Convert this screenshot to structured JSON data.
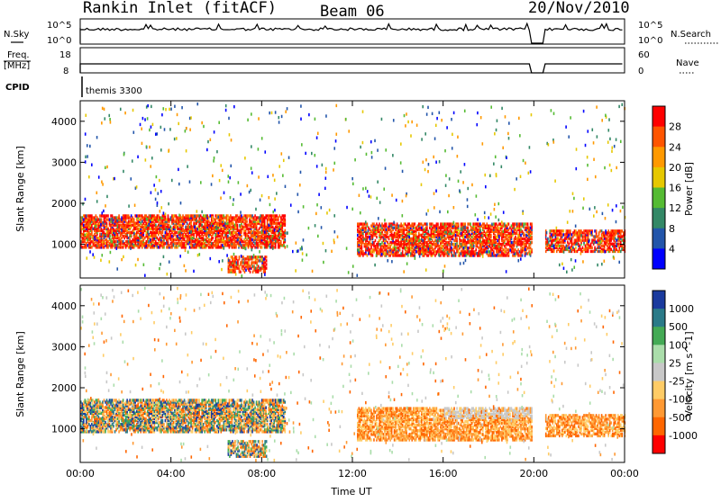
{
  "title": {
    "station": "Rankin Inlet (fitACF)",
    "beam": "Beam 06",
    "date": "20/Nov/2010"
  },
  "header": {
    "nsky_label": "N.Sky",
    "nsearch_label": "N.Search",
    "freq_label": "Freq.",
    "freq_unit": "[MHz]",
    "nave_label": "Nave",
    "cpid_label": "CPID",
    "cpid_value": "themis 3300",
    "nsky_ticks": [
      "10^5",
      "10^0"
    ],
    "nsearch_ticks": [
      "10^5",
      "10^0"
    ],
    "freq_ticks": [
      "18",
      "8"
    ],
    "nave_ticks": [
      "60",
      "0"
    ]
  },
  "chart_data": [
    {
      "type": "heatmap",
      "name": "power-panel",
      "ylabel": "Slant Range [km]",
      "xlabel": "",
      "xlim": [
        "00:00",
        "24:00"
      ],
      "ylim": [
        180,
        4500
      ],
      "y_ticks": [
        1000,
        2000,
        3000,
        4000
      ],
      "colorbar": {
        "label": "Power [dB]",
        "ticks": [
          "28",
          "24",
          "20",
          "16",
          "12",
          "8",
          "4"
        ],
        "colors": [
          "#ff0000",
          "#ff5500",
          "#ff9900",
          "#e6c800",
          "#55bb33",
          "#338866",
          "#2255aa",
          "#0000ff"
        ]
      },
      "features": [
        {
          "t_start": 0.0,
          "t_end": 9.0,
          "range_min": 900,
          "range_max": 1700,
          "level": "high"
        },
        {
          "t_start": 12.2,
          "t_end": 20.0,
          "range_min": 700,
          "range_max": 1500,
          "level": "high"
        },
        {
          "t_start": 20.5,
          "t_end": 24.0,
          "range_min": 800,
          "range_max": 1300,
          "level": "high"
        },
        {
          "t_start": 6.5,
          "t_end": 8.2,
          "range_min": 300,
          "range_max": 700,
          "level": "high"
        }
      ]
    },
    {
      "type": "heatmap",
      "name": "velocity-panel",
      "ylabel": "Slant Range [km]",
      "xlabel": "Time UT",
      "xlim": [
        "00:00",
        "24:00"
      ],
      "ylim": [
        180,
        4500
      ],
      "y_ticks": [
        1000,
        2000,
        3000,
        4000
      ],
      "x_ticks": [
        "00:00",
        "04:00",
        "08:00",
        "12:00",
        "16:00",
        "20:00",
        "00:00"
      ],
      "colorbar": {
        "label": "Velocity [m s^-1]",
        "ticks": [
          "1000",
          "500",
          "100",
          "25",
          "-25",
          "-100",
          "-500",
          "-1000"
        ],
        "colors": [
          "#1a3a9e",
          "#2a7a88",
          "#44aa55",
          "#aaddaa",
          "#c8c8c8",
          "#ffcc66",
          "#ff9933",
          "#ff6600",
          "#ff0000"
        ]
      }
    }
  ]
}
